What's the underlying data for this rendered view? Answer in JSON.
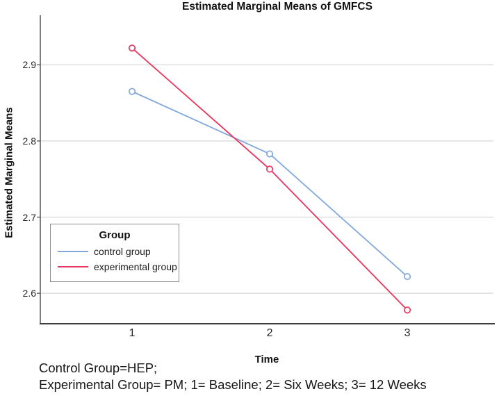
{
  "figure": {
    "footer_lines": [
      "Control Group=HEP;",
      "Experimental Group= PM; 1= Baseline; 2= Six Weeks; 3= 12 Weeks"
    ]
  },
  "chart_data": {
    "type": "line",
    "title": "Estimated Marginal Means of GMFCS",
    "xlabel": "Time",
    "ylabel": "Estimated Marginal Means",
    "x": [
      1,
      2,
      3
    ],
    "xticklabels": [
      "1",
      "2",
      "3"
    ],
    "yticks": [
      2.6,
      2.7,
      2.8,
      2.9
    ],
    "ylim": [
      2.56,
      2.965
    ],
    "xlim": [
      0.333,
      3.626
    ],
    "grid": "horizontal-only",
    "marker": "open-circle",
    "legend": {
      "title": "Group",
      "position": "inside-lower-left"
    },
    "series": [
      {
        "name": "control group",
        "color": "#80A8DC",
        "values": [
          2.865,
          2.783,
          2.622
        ]
      },
      {
        "name": "experimental group",
        "color": "#EA345E",
        "values": [
          2.922,
          2.763,
          2.578
        ]
      }
    ],
    "colors": {
      "gridline": "#d7d7d7",
      "axis": "#545454",
      "marker_fill": "#ffffff",
      "legend_border": "#8c8c8c",
      "text": "#1b1b1b"
    }
  }
}
